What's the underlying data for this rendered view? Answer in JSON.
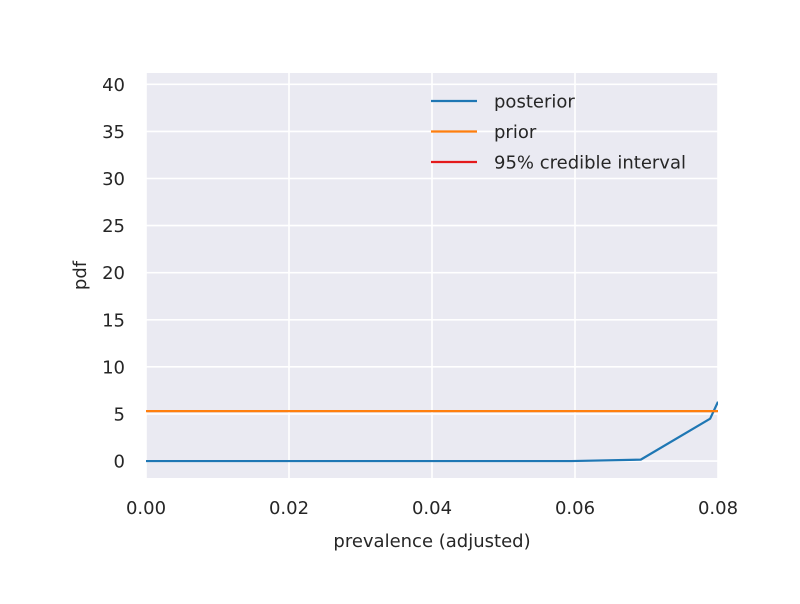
{
  "chart_data": {
    "type": "line",
    "xlabel": "prevalence (adjusted)",
    "ylabel": "pdf",
    "xlim": [
      0.0,
      0.08
    ],
    "ylim": [
      -1.8,
      41.2
    ],
    "xticks": [
      0.0,
      0.02,
      0.04,
      0.06,
      0.08
    ],
    "xtick_labels": [
      "0.00",
      "0.02",
      "0.04",
      "0.06",
      "0.08"
    ],
    "yticks": [
      0,
      5,
      10,
      15,
      20,
      25,
      30,
      35,
      40
    ],
    "ytick_labels": [
      "0",
      "5",
      "10",
      "15",
      "20",
      "25",
      "30",
      "35",
      "40"
    ],
    "grid": true,
    "legend_position": "top-right",
    "background": "#eaeaf2",
    "series": [
      {
        "name": "posterior",
        "color": "#1f77b4",
        "x": [
          0.0,
          0.01,
          0.02,
          0.03,
          0.04,
          0.05,
          0.0595,
          0.0692,
          0.0789,
          0.08
        ],
        "y": [
          0.0,
          0.0,
          0.0,
          0.0,
          0.0,
          0.0,
          0.0,
          0.15,
          4.5,
          6.3
        ]
      },
      {
        "name": "prior",
        "color": "#ff7f0e",
        "x": [
          0.0,
          0.08
        ],
        "y": [
          5.3,
          5.3
        ]
      },
      {
        "name": "95% credible interval",
        "color": "#e41a1c",
        "x": [],
        "y": []
      }
    ]
  }
}
